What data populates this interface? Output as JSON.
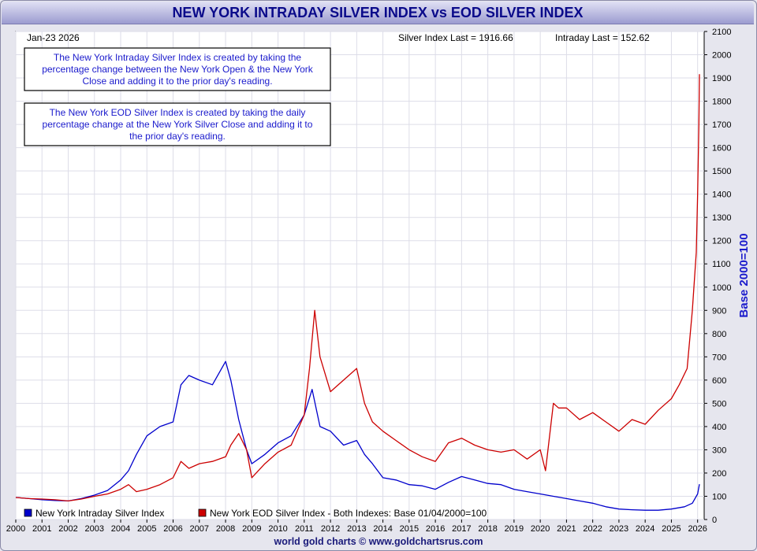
{
  "header": {
    "title": "NEW YORK INTRADAY SILVER INDEX vs EOD SILVER INDEX"
  },
  "footer": {
    "credit": "world gold charts © www.goldchartsrus.com"
  },
  "chart_data": {
    "type": "line",
    "date_label": "Jan-23  2026",
    "readouts": {
      "silver_last": "Silver Index Last = 1916.66",
      "intraday_last": "Intraday Last = 152.62"
    },
    "notes": [
      [
        "The New York Intraday Silver Index is created by taking the",
        "percentage change between the New York Open & the New York",
        "Close and adding it to the prior day's reading."
      ],
      [
        "The New York EOD Silver Index is created by taking the daily",
        "percentage change at the New York Silver Close and adding it to",
        "the prior day's reading."
      ]
    ],
    "ylabel": "Base 2000=100",
    "ylim": [
      0,
      2100
    ],
    "y_ticks": [
      0,
      100,
      200,
      300,
      400,
      500,
      600,
      700,
      800,
      900,
      1000,
      1100,
      1200,
      1300,
      1400,
      1500,
      1600,
      1700,
      1800,
      1900,
      2000,
      2100
    ],
    "xlim": [
      2000,
      2026.25
    ],
    "x_ticks": [
      2000,
      2001,
      2002,
      2003,
      2004,
      2005,
      2006,
      2007,
      2008,
      2009,
      2010,
      2011,
      2012,
      2013,
      2014,
      2015,
      2016,
      2017,
      2018,
      2019,
      2020,
      2021,
      2022,
      2023,
      2024,
      2025,
      2026
    ],
    "grid": true,
    "legend_note": "Both Indexes: Base 01/04/2000=100",
    "series": [
      {
        "name": "New York Intraday Silver Index",
        "color": "#0000cc",
        "x": [
          2000,
          2000.5,
          2001,
          2001.5,
          2002,
          2002.5,
          2003,
          2003.5,
          2004,
          2004.3,
          2004.6,
          2005,
          2005.5,
          2006,
          2006.3,
          2006.6,
          2007,
          2007.5,
          2008,
          2008.2,
          2008.5,
          2008.8,
          2009,
          2009.5,
          2010,
          2010.5,
          2011,
          2011.3,
          2011.6,
          2012,
          2012.5,
          2013,
          2013.3,
          2013.6,
          2014,
          2014.5,
          2015,
          2015.5,
          2016,
          2016.5,
          2017,
          2017.5,
          2018,
          2018.5,
          2019,
          2019.5,
          2020,
          2020.5,
          2021,
          2021.5,
          2022,
          2022.5,
          2023,
          2023.5,
          2024,
          2024.5,
          2025,
          2025.5,
          2025.8,
          2026,
          2026.07
        ],
        "values": [
          95,
          90,
          85,
          82,
          80,
          90,
          105,
          125,
          170,
          210,
          280,
          360,
          400,
          420,
          580,
          620,
          600,
          580,
          680,
          600,
          430,
          300,
          240,
          280,
          330,
          360,
          450,
          560,
          400,
          380,
          320,
          340,
          280,
          240,
          180,
          170,
          150,
          145,
          130,
          160,
          185,
          170,
          155,
          150,
          130,
          120,
          110,
          100,
          90,
          80,
          70,
          55,
          45,
          42,
          40,
          40,
          45,
          55,
          70,
          110,
          152
        ]
      },
      {
        "name": "New York EOD Silver Index",
        "color": "#cc0000",
        "x": [
          2000,
          2000.5,
          2001,
          2001.5,
          2002,
          2002.5,
          2003,
          2003.5,
          2004,
          2004.3,
          2004.6,
          2005,
          2005.5,
          2006,
          2006.3,
          2006.6,
          2007,
          2007.5,
          2008,
          2008.2,
          2008.5,
          2008.8,
          2009,
          2009.5,
          2010,
          2010.5,
          2011,
          2011.2,
          2011.4,
          2011.6,
          2012,
          2012.5,
          2013,
          2013.3,
          2013.6,
          2014,
          2014.5,
          2015,
          2015.5,
          2016,
          2016.5,
          2017,
          2017.5,
          2018,
          2018.5,
          2019,
          2019.5,
          2020,
          2020.2,
          2020.5,
          2020.7,
          2021,
          2021.5,
          2022,
          2022.5,
          2023,
          2023.5,
          2024,
          2024.5,
          2025,
          2025.3,
          2025.6,
          2025.8,
          2025.95,
          2026,
          2026.05,
          2026.07
        ],
        "values": [
          95,
          90,
          88,
          85,
          80,
          88,
          100,
          110,
          130,
          150,
          120,
          130,
          150,
          180,
          250,
          220,
          240,
          250,
          270,
          320,
          370,
          300,
          180,
          240,
          290,
          320,
          450,
          650,
          900,
          700,
          550,
          600,
          650,
          500,
          420,
          380,
          340,
          300,
          270,
          250,
          330,
          350,
          320,
          300,
          290,
          300,
          260,
          300,
          210,
          500,
          480,
          480,
          430,
          460,
          420,
          380,
          430,
          410,
          470,
          520,
          580,
          650,
          900,
          1150,
          1400,
          1700,
          1916
        ]
      }
    ]
  }
}
